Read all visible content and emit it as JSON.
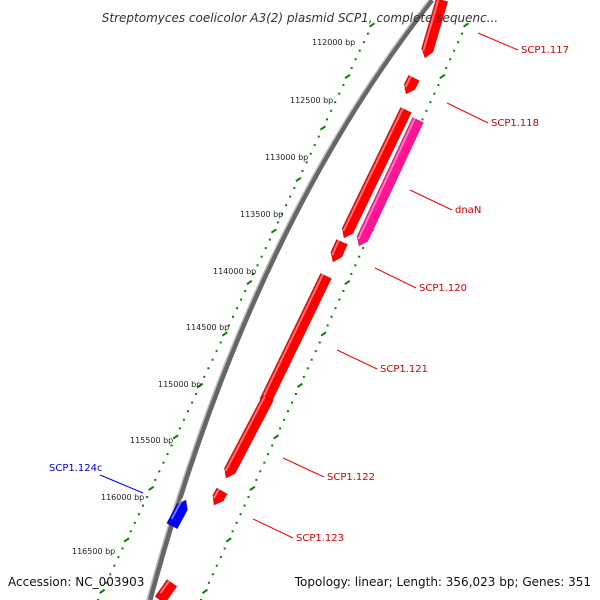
{
  "title": "Streptomyces coelicolor A3(2) plasmid SCP1, complete sequenc...",
  "footer": {
    "accession": "Accession: NC_003903",
    "summary": "Topology: linear; Length: 356,023 bp; Genes: 351"
  },
  "colors": {
    "forward_gene": "#ff0000",
    "special_gene": "#ff1493",
    "reverse_gene": "#0000ff",
    "backbone": "#666666",
    "tick": "#0a7f0a",
    "forward_label": "#cc0000",
    "reverse_label": "#0000cc"
  },
  "ticks": [
    {
      "label": "112000 bp"
    },
    {
      "label": "112500 bp"
    },
    {
      "label": "113000 bp"
    },
    {
      "label": "113500 bp"
    },
    {
      "label": "114000 bp"
    },
    {
      "label": "114500 bp"
    },
    {
      "label": "115000 bp"
    },
    {
      "label": "115500 bp"
    },
    {
      "label": "116000 bp"
    },
    {
      "label": "116500 bp"
    }
  ],
  "genes": [
    {
      "name": "SCP1.117",
      "strand": "forward"
    },
    {
      "name": "SCP1.118",
      "strand": "forward"
    },
    {
      "name": "dnaN",
      "strand": "forward",
      "highlight": true
    },
    {
      "name": "SCP1.120",
      "strand": "forward"
    },
    {
      "name": "SCP1.121",
      "strand": "forward"
    },
    {
      "name": "SCP1.122",
      "strand": "forward"
    },
    {
      "name": "SCP1.123",
      "strand": "forward"
    },
    {
      "name": "SCP1.124c",
      "strand": "reverse"
    }
  ]
}
